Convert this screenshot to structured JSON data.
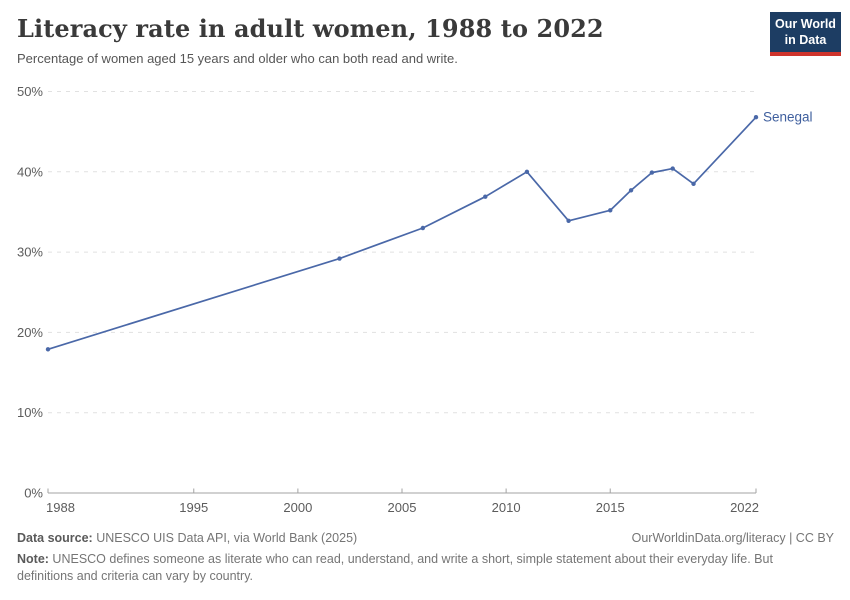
{
  "header": {
    "title": "Literacy rate in adult women, 1988 to 2022",
    "subtitle": "Percentage of women aged 15 years and older who can both read and write.",
    "logo": {
      "line1": "Our World",
      "line2": "in Data"
    }
  },
  "chart_data": {
    "type": "line",
    "title": "Literacy rate in adult women, 1988 to 2022",
    "xlabel": "",
    "ylabel": "",
    "xlim": [
      1988,
      2022
    ],
    "ylim": [
      0,
      50
    ],
    "x_ticks": [
      1988,
      1995,
      2000,
      2005,
      2010,
      2015,
      2022
    ],
    "y_ticks": [
      0,
      10,
      20,
      30,
      40,
      50
    ],
    "y_tick_suffix": "%",
    "grid": "horizontal-dashed",
    "legend_position": "line-end-label",
    "series": [
      {
        "name": "Senegal",
        "color": "#4a68a8",
        "x": [
          1988,
          2002,
          2006,
          2009,
          2011,
          2013,
          2015,
          2016,
          2017,
          2018,
          2019,
          2022
        ],
        "values": [
          17.9,
          29.2,
          33.0,
          36.9,
          40.0,
          33.9,
          35.2,
          37.7,
          39.9,
          40.4,
          38.5,
          46.8
        ]
      }
    ]
  },
  "footer": {
    "data_source_label": "Data source:",
    "data_source": " UNESCO UIS Data API, via World Bank (2025)",
    "attribution": "OurWorldinData.org/literacy | CC BY",
    "note_label": "Note:",
    "note": " UNESCO defines someone as literate who can read, understand, and write a short, simple statement about their everyday life. But definitions and criteria can vary by country."
  },
  "colors": {
    "line": "#4a68a8",
    "series_label": "#3f5f9e",
    "logo_bg": "#1d3d63",
    "logo_accent": "#cf342c",
    "grid": "#e1e1e1",
    "axis": "#a3a3a3",
    "tick_label": "#5c5c5c"
  }
}
